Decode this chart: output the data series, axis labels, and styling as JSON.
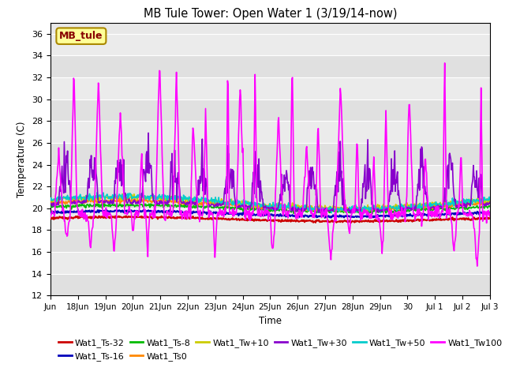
{
  "title": "MB Tule Tower: Open Water 1 (3/19/14-now)",
  "xlabel": "Time",
  "ylabel": "Temperature (C)",
  "ylim": [
    12,
    37
  ],
  "yticks": [
    12,
    14,
    16,
    18,
    20,
    22,
    24,
    26,
    28,
    30,
    32,
    34,
    36
  ],
  "background_color": "#ffffff",
  "plot_bg_color": "#e8e8e8",
  "series_colors": {
    "Wat1_Ts-32": "#cc0000",
    "Wat1_Ts-16": "#0000bb",
    "Wat1_Ts-8": "#00bb00",
    "Wat1_Ts0": "#ff8800",
    "Wat1_Tw+10": "#cccc00",
    "Wat1_Tw+30": "#8800cc",
    "Wat1_Tw+50": "#00cccc",
    "Wat1_Tw100": "#ff00ff"
  },
  "xtick_labels": [
    "Jun",
    "18Jun",
    "19Jun",
    "20Jun",
    "21Jun",
    "22Jun",
    "23Jun",
    "24Jun",
    "25Jun",
    "26Jun",
    "27Jun",
    "28Jun",
    "29Jun",
    "30",
    "Jul 1",
    "Jul 2",
    "Jul 3"
  ]
}
